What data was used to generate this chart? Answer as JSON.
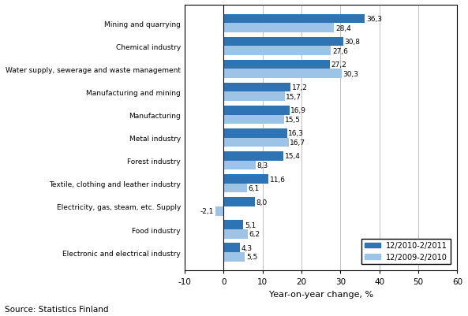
{
  "categories": [
    "Electronic and electrical industry",
    "Food industry",
    "Electricity, gas, steam, etc. Supply",
    "Textile, clothing and leather industry",
    "Forest industry",
    "Metal industry",
    "Manufacturing",
    "Manufacturing and mining",
    "Water supply, sewerage and waste management",
    "Chemical industry",
    "Mining and quarrying"
  ],
  "series_2010_2011": [
    4.3,
    5.1,
    8.0,
    11.6,
    15.4,
    16.3,
    16.9,
    17.2,
    27.2,
    30.8,
    36.3
  ],
  "series_2009_2010": [
    5.5,
    6.2,
    -2.1,
    6.1,
    8.3,
    16.7,
    15.5,
    15.7,
    30.3,
    27.6,
    28.4
  ],
  "color_2010_2011": "#2E74B5",
  "color_2009_2010": "#9DC3E6",
  "xlabel": "Year-on-year change, %",
  "legend_2010_2011": "12/2010-2/2011",
  "legend_2009_2010": "12/2009-2/2010",
  "source": "Source: Statistics Finland",
  "xlim": [
    -10,
    60
  ],
  "xticks": [
    -10,
    0,
    10,
    20,
    30,
    40,
    50,
    60
  ],
  "bar_height": 0.4,
  "label_fontsize": 6.5,
  "tick_fontsize": 7.5,
  "xlabel_fontsize": 8.0
}
